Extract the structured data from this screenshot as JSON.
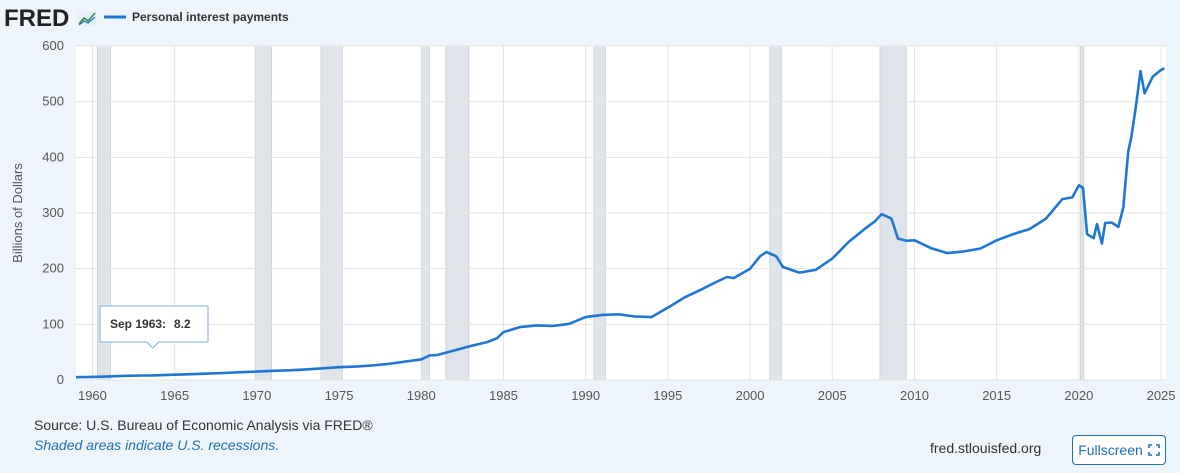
{
  "header": {
    "logo_text": "FRED",
    "logo_icon": "trend-chart-icon"
  },
  "footer": {
    "source": "Source: U.S. Bureau of Economic Analysis via FRED®",
    "note": "Shaded areas indicate U.S. recessions.",
    "site": "fred.stlouisfed.org",
    "fullscreen_label": "Fullscreen",
    "fullscreen_icon": "expand-icon"
  },
  "tooltip": {
    "label": "Sep 1963:",
    "value": "8.2"
  },
  "colors": {
    "series": "#1f77d4",
    "recession": "#dfe4ea",
    "background": "#ffffff",
    "page": "#eef4fb"
  },
  "chart_data": {
    "type": "line",
    "title": "",
    "ylabel": "Billions of Dollars",
    "xlim": [
      1959,
      2025.3
    ],
    "ylim": [
      0,
      600
    ],
    "grid": true,
    "legend_position": "top-left",
    "x_ticks": [
      1960,
      1965,
      1970,
      1975,
      1980,
      1985,
      1990,
      1995,
      2000,
      2005,
      2010,
      2015,
      2020,
      2025
    ],
    "y_ticks": [
      0,
      100,
      200,
      300,
      400,
      500,
      600
    ],
    "recessions": [
      [
        1960.3,
        1961.1
      ],
      [
        1969.9,
        1970.9
      ],
      [
        1973.9,
        1975.2
      ],
      [
        1980.0,
        1980.5
      ],
      [
        1981.5,
        1982.9
      ],
      [
        1990.5,
        1991.2
      ],
      [
        2001.2,
        2001.9
      ],
      [
        2007.9,
        2009.5
      ],
      [
        2020.1,
        2020.3
      ]
    ],
    "series": [
      {
        "name": "Personal interest payments",
        "x": [
          1959.0,
          1960.0,
          1961.0,
          1962.0,
          1963.0,
          1963.67,
          1965.0,
          1966.0,
          1967.0,
          1968.0,
          1969.0,
          1970.0,
          1971.0,
          1972.0,
          1973.0,
          1974.0,
          1975.0,
          1976.0,
          1977.0,
          1978.0,
          1979.0,
          1980.0,
          1980.5,
          1981.0,
          1982.0,
          1983.0,
          1984.0,
          1984.6,
          1985.0,
          1986.0,
          1987.0,
          1988.0,
          1989.0,
          1990.0,
          1991.0,
          1992.0,
          1993.0,
          1994.0,
          1995.0,
          1996.0,
          1997.0,
          1998.0,
          1998.6,
          1999.0,
          2000.0,
          2000.6,
          2001.0,
          2001.6,
          2002.0,
          2003.0,
          2004.0,
          2005.0,
          2006.0,
          2007.0,
          2007.6,
          2008.0,
          2008.6,
          2009.0,
          2009.5,
          2010.0,
          2011.0,
          2012.0,
          2013.0,
          2014.0,
          2015.0,
          2016.0,
          2017.0,
          2018.0,
          2019.0,
          2019.6,
          2020.0,
          2020.25,
          2020.5,
          2020.9,
          2021.1,
          2021.4,
          2021.6,
          2022.0,
          2022.4,
          2022.7,
          2023.0,
          2023.2,
          2023.5,
          2023.75,
          2024.0,
          2024.5,
          2025.0,
          2025.2
        ],
        "values": [
          5,
          5.5,
          6.5,
          7.5,
          8,
          8.2,
          9.5,
          10.5,
          11.5,
          12.5,
          14,
          15,
          16.5,
          17.5,
          19,
          21,
          23,
          24,
          26,
          29,
          33,
          37,
          44,
          45,
          53,
          61,
          68,
          75,
          86,
          95,
          98,
          97,
          101,
          113,
          117,
          118,
          114,
          113,
          130,
          148,
          162,
          177,
          185,
          183,
          200,
          222,
          230,
          222,
          203,
          193,
          198,
          218,
          248,
          272,
          285,
          298,
          290,
          254,
          250,
          251,
          237,
          228,
          231,
          236,
          251,
          262,
          271,
          290,
          325,
          328,
          350,
          345,
          262,
          255,
          280,
          245,
          282,
          283,
          275,
          310,
          410,
          438,
          498,
          555,
          515,
          545,
          557,
          560
        ]
      }
    ]
  }
}
